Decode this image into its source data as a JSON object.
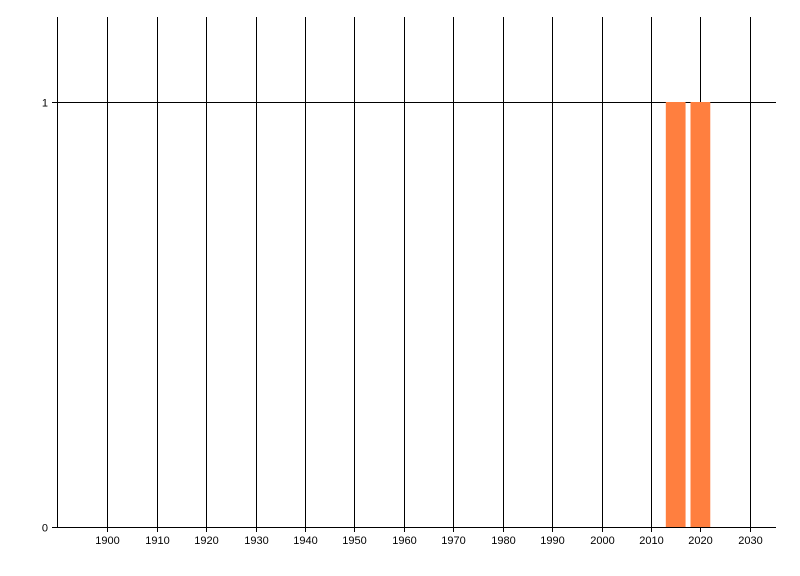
{
  "chart_data": {
    "type": "bar",
    "title": "",
    "xlabel": "",
    "ylabel": "",
    "x": [
      2015,
      2020
    ],
    "values": [
      1,
      1
    ],
    "bar_width_years": 4,
    "bar_color": "#FF7F3F",
    "xlim": [
      1889.8,
      2035.3
    ],
    "ylim": [
      0,
      1.2
    ],
    "x_ticks": [
      1900,
      1910,
      1920,
      1930,
      1940,
      1950,
      1960,
      1970,
      1980,
      1990,
      2000,
      2010,
      2020,
      2030
    ],
    "x_tick_labels": [
      "1900",
      "1910",
      "1920",
      "1930",
      "1940",
      "1950",
      "1960",
      "1970",
      "1980",
      "1990",
      "2000",
      "2010",
      "2020",
      "2030"
    ],
    "y_ticks": [
      0,
      1
    ],
    "y_tick_labels": [
      "0",
      "1"
    ],
    "grid": true,
    "legend": "none"
  }
}
